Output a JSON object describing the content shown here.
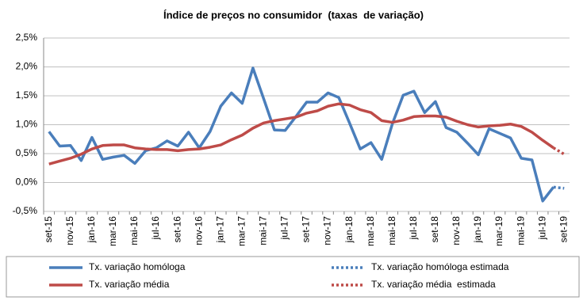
{
  "chart_data": {
    "type": "line",
    "title": "Índice de preços no consumidor  (taxas  de variação)",
    "categories": [
      "set-15",
      null,
      "nov-15",
      null,
      "jan-16",
      null,
      "mar-16",
      null,
      "mai-16",
      null,
      "jul-16",
      null,
      "set-16",
      null,
      "nov-16",
      null,
      "jan-17",
      null,
      "mar-17",
      null,
      "mai-17",
      null,
      "jul-17",
      null,
      "set-17",
      null,
      "nov-17",
      null,
      "jan-18",
      null,
      "mar-18",
      null,
      "mai-18",
      null,
      "jul-18",
      null,
      "set-18",
      null,
      "nov-18",
      null,
      "jan-19",
      null,
      "mar-19",
      null,
      "mai-19",
      null,
      "jul-19",
      null,
      "set-19"
    ],
    "ylim": [
      -0.5,
      2.5
    ],
    "yticks": [
      {
        "value": -0.5,
        "label": "-0,5%"
      },
      {
        "value": 0,
        "label": "0,0%"
      },
      {
        "value": 0.5,
        "label": "0,5%"
      },
      {
        "value": 1,
        "label": "1,0%"
      },
      {
        "value": 1.5,
        "label": "1,5%"
      },
      {
        "value": 2,
        "label": "2,0%"
      },
      {
        "value": 2.5,
        "label": "2,5%"
      }
    ],
    "grid": true,
    "series": [
      {
        "name": "Tx. variação homóloga",
        "color": "#4a7ebb",
        "style": "solid",
        "values": [
          0.88,
          0.63,
          0.64,
          0.38,
          0.78,
          0.4,
          0.44,
          0.47,
          0.33,
          0.55,
          0.6,
          0.72,
          0.63,
          0.87,
          0.6,
          0.88,
          1.32,
          1.55,
          1.37,
          1.98,
          1.45,
          0.91,
          0.9,
          1.14,
          1.39,
          1.39,
          1.55,
          1.47,
          1.03,
          0.58,
          0.69,
          0.4,
          1.02,
          1.51,
          1.58,
          1.21,
          1.4,
          0.95,
          0.87,
          0.68,
          0.48,
          0.93,
          0.85,
          0.77,
          0.42,
          0.39,
          -0.32,
          -0.08,
          null
        ]
      },
      {
        "name": "Tx. variação homóloga estimada",
        "color": "#4a7ebb",
        "style": "dotted",
        "values": [
          null,
          null,
          null,
          null,
          null,
          null,
          null,
          null,
          null,
          null,
          null,
          null,
          null,
          null,
          null,
          null,
          null,
          null,
          null,
          null,
          null,
          null,
          null,
          null,
          null,
          null,
          null,
          null,
          null,
          null,
          null,
          null,
          null,
          null,
          null,
          null,
          null,
          null,
          null,
          null,
          null,
          null,
          null,
          null,
          null,
          null,
          null,
          -0.08,
          -0.1
        ]
      },
      {
        "name": "Tx. variação média",
        "color": "#be4b48",
        "style": "solid",
        "values": [
          0.32,
          0.37,
          0.42,
          0.49,
          0.58,
          0.64,
          0.65,
          0.65,
          0.6,
          0.58,
          0.57,
          0.57,
          0.55,
          0.57,
          0.58,
          0.61,
          0.65,
          0.74,
          0.82,
          0.94,
          1.03,
          1.07,
          1.1,
          1.13,
          1.2,
          1.24,
          1.32,
          1.36,
          1.34,
          1.26,
          1.21,
          1.07,
          1.04,
          1.08,
          1.14,
          1.15,
          1.15,
          1.13,
          1.06,
          1.0,
          0.96,
          0.98,
          0.99,
          1.01,
          0.97,
          0.87,
          0.73,
          0.6,
          null
        ]
      },
      {
        "name": "Tx. variação média  estimada",
        "color": "#be4b48",
        "style": "dotted",
        "values": [
          null,
          null,
          null,
          null,
          null,
          null,
          null,
          null,
          null,
          null,
          null,
          null,
          null,
          null,
          null,
          null,
          null,
          null,
          null,
          null,
          null,
          null,
          null,
          null,
          null,
          null,
          null,
          null,
          null,
          null,
          null,
          null,
          null,
          null,
          null,
          null,
          null,
          null,
          null,
          null,
          null,
          null,
          null,
          null,
          null,
          null,
          null,
          0.6,
          0.49
        ]
      }
    ]
  }
}
